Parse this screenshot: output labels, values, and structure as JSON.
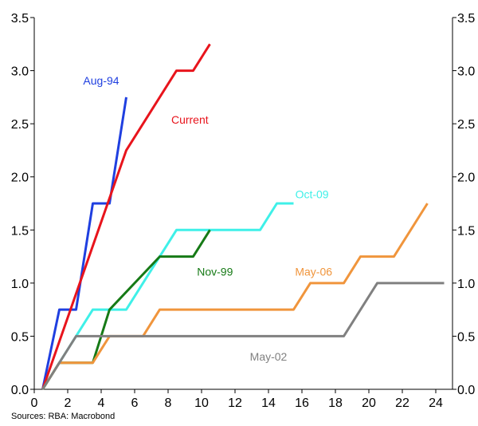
{
  "source": "Sources: RBA: Macrobond",
  "chart_data": {
    "type": "line",
    "title": "",
    "xlabel": "",
    "ylabel": "",
    "xlim": [
      0,
      25
    ],
    "ylim": [
      0,
      3.5
    ],
    "x_ticks": [
      "0",
      "2",
      "4",
      "6",
      "8",
      "10",
      "12",
      "14",
      "16",
      "18",
      "20",
      "22",
      "24"
    ],
    "x_tick_values": [
      0,
      2,
      4,
      6,
      8,
      10,
      12,
      14,
      16,
      18,
      20,
      22,
      24
    ],
    "y_ticks": [
      "0.0",
      "0.5",
      "1.0",
      "1.5",
      "2.0",
      "2.5",
      "3.0",
      "3.5"
    ],
    "y_tick_values": [
      0,
      0.5,
      1.0,
      1.5,
      2.0,
      2.5,
      3.0,
      3.5
    ],
    "grid": false,
    "legend": "none",
    "series": [
      {
        "name": "Aug-94",
        "color": "#1f3fe0",
        "label_at": [
          4.0,
          2.87
        ],
        "x": [
          0.5,
          1.5,
          2.5,
          3.5,
          4.5,
          5.5
        ],
        "y": [
          0,
          0.75,
          0.75,
          1.75,
          1.75,
          2.75
        ]
      },
      {
        "name": "Current",
        "color": "#e8141c",
        "label_at": [
          9.3,
          2.5
        ],
        "x": [
          0.5,
          5.5,
          8.5,
          9.5,
          10.5
        ],
        "y": [
          0,
          2.25,
          3.0,
          3.0,
          3.25
        ]
      },
      {
        "name": "Oct-09",
        "color": "#3ff0e8",
        "label_at": [
          16.6,
          1.8
        ],
        "x": [
          0.5,
          3.5,
          5.5,
          8.5,
          13.5,
          14.5,
          15.5
        ],
        "y": [
          0,
          0.75,
          0.75,
          1.5,
          1.5,
          1.75,
          1.75
        ]
      },
      {
        "name": "Nov-99",
        "color": "#167a16",
        "label_at": [
          10.8,
          1.07
        ],
        "x": [
          0.5,
          1.5,
          3.5,
          4.5,
          7.5,
          9.5,
          10.5
        ],
        "y": [
          0,
          0.25,
          0.25,
          0.75,
          1.25,
          1.25,
          1.5
        ]
      },
      {
        "name": "May-06",
        "color": "#f0953c",
        "label_at": [
          16.7,
          1.07
        ],
        "x": [
          0.5,
          1.5,
          3.5,
          4.5,
          6.5,
          7.5,
          15.5,
          16.5,
          18.5,
          19.5,
          21.5,
          23.5
        ],
        "y": [
          0,
          0.25,
          0.25,
          0.5,
          0.5,
          0.75,
          0.75,
          1.0,
          1.0,
          1.25,
          1.25,
          1.75
        ]
      },
      {
        "name": "May-02",
        "color": "#808080",
        "label_at": [
          14.0,
          0.27
        ],
        "x": [
          0.5,
          2.5,
          18.5,
          20.5,
          24.5
        ],
        "y": [
          0,
          0.5,
          0.5,
          1.0,
          1.0
        ]
      }
    ]
  }
}
